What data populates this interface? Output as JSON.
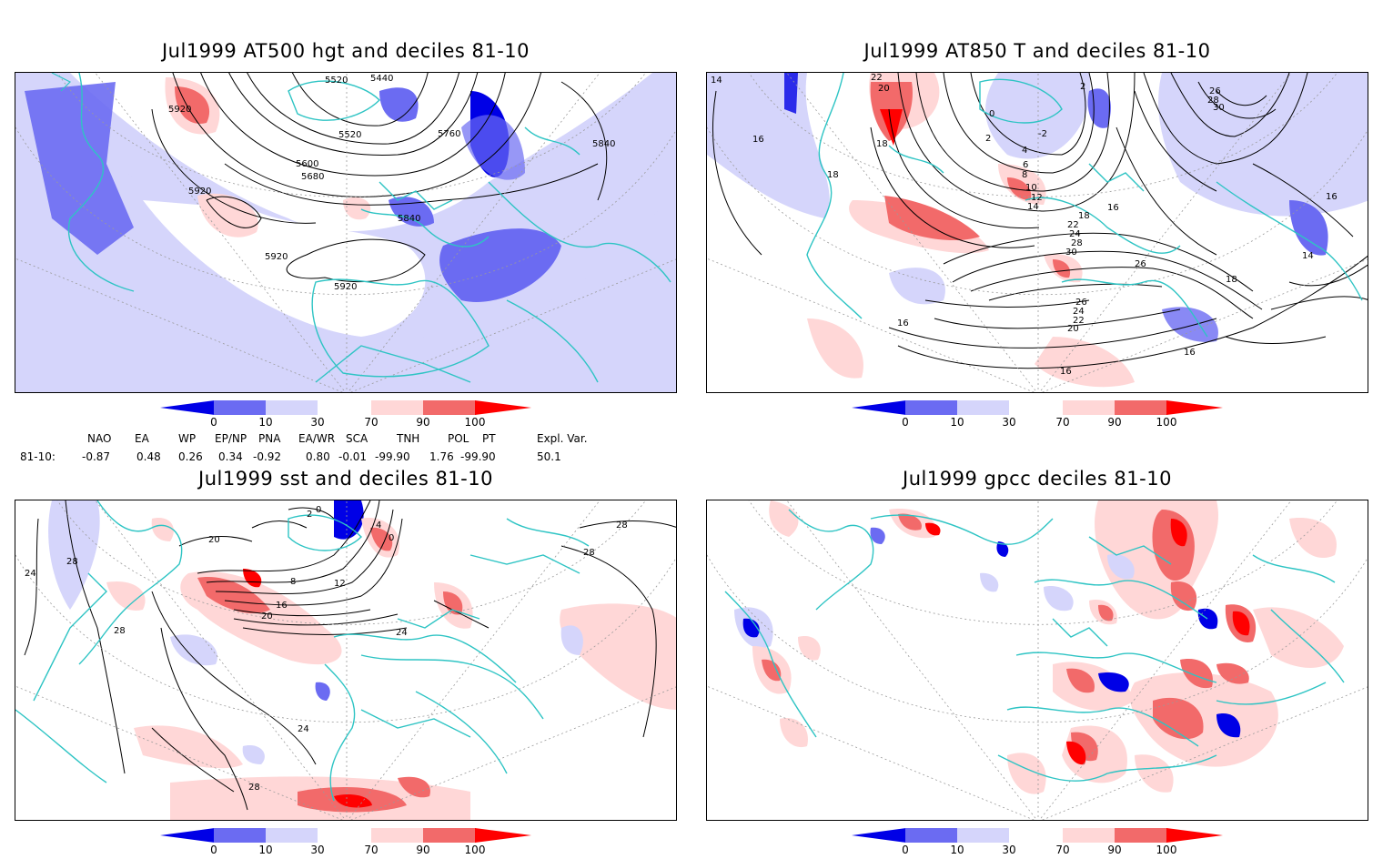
{
  "panels": {
    "p1": {
      "title": "Jul1999 AT500 hgt and deciles 81-10",
      "labels": [
        "5920",
        "5520",
        "5440",
        "5520",
        "5760",
        "5840",
        "5600",
        "5680",
        "5920",
        "5840",
        "5920",
        "5920"
      ]
    },
    "p2": {
      "title": "Jul1999 AT850 T and deciles 81-10",
      "labels": [
        "14",
        "22",
        "20",
        "18",
        "16",
        "18",
        "2",
        "0",
        "-2",
        "2",
        "4",
        "6",
        "8",
        "10",
        "12",
        "14",
        "16",
        "18",
        "22",
        "24",
        "28",
        "30",
        "26",
        "26",
        "24",
        "22",
        "20",
        "16",
        "16",
        "16",
        "14",
        "18",
        "26",
        "28",
        "30",
        "16"
      ]
    },
    "p3": {
      "title": "Jul1999 sst and deciles 81-10",
      "labels": [
        "24",
        "28",
        "28",
        "20",
        "2",
        "0",
        "8",
        "12",
        "16",
        "20",
        "24",
        "28",
        "28",
        "28",
        "24",
        "4",
        "0"
      ]
    },
    "p4": {
      "title": "Jul1999 gpcc deciles 81-10"
    }
  },
  "colorbar": {
    "ticks": [
      "0",
      "10",
      "30",
      "70",
      "90",
      "100"
    ],
    "colors": {
      "below_10_extreme": "#0000e6",
      "range_0_10": "#6b6bf2",
      "range_10_30": "#d5d5fb",
      "range_30_70": "#ffffff",
      "range_70_90": "#ffd7d7",
      "range_90_100": "#f26a6a",
      "above_100_extreme": "#ff0000"
    }
  },
  "map_colors": {
    "coastline": "#2ec4c4",
    "contour": "#000000",
    "grid": "#9a9a9a"
  },
  "indices": {
    "headers": [
      "NAO",
      "EA",
      "WP",
      "EP/NP",
      "PNA",
      "EA/WR",
      "SCA",
      "TNH",
      "POL",
      "PT",
      "Expl. Var."
    ],
    "row_label": "81-10:",
    "values": [
      "-0.87",
      "0.48",
      "0.26",
      "0.34",
      "-0.92",
      "0.80",
      "-0.01",
      "-99.90",
      "1.76",
      "-99.90",
      "50.1"
    ]
  }
}
